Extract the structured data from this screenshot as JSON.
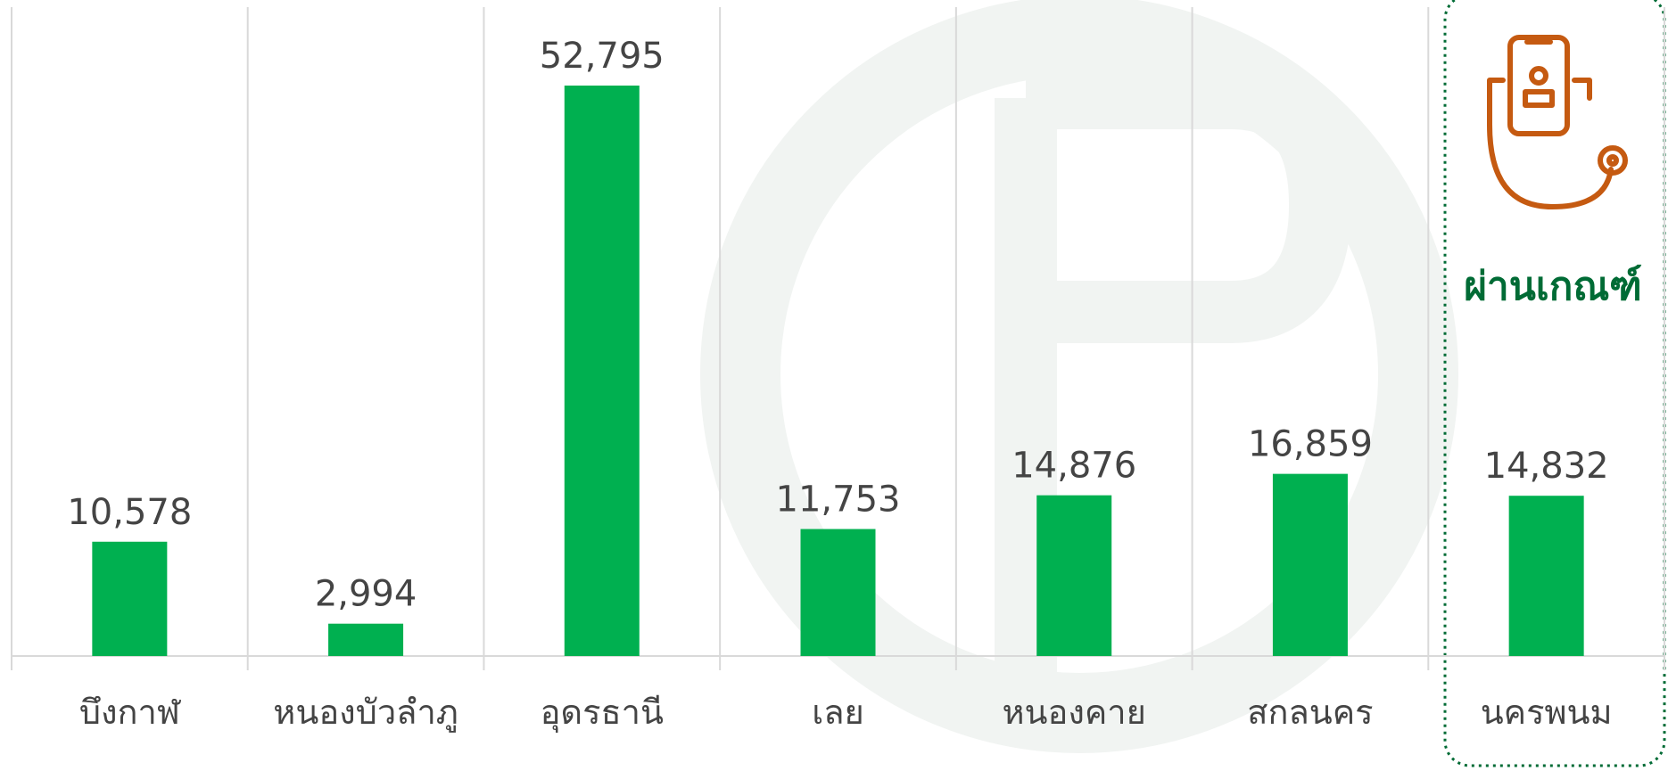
{
  "chart_data": {
    "type": "bar",
    "categories": [
      "บึงกาฬ",
      "หนองบัวลำภู",
      "อุดรธานี",
      "เลย",
      "หนองคาย",
      "สกลนคร",
      "นครพนม"
    ],
    "values": [
      10578,
      2994,
      52795,
      11753,
      14876,
      16859,
      14832
    ],
    "value_labels": [
      "10,578",
      "2,994",
      "52,795",
      "11,753",
      "14,876",
      "16,859",
      "14,832"
    ],
    "color": "#00b050",
    "annotation": "ผ่านเกณฑ์"
  }
}
